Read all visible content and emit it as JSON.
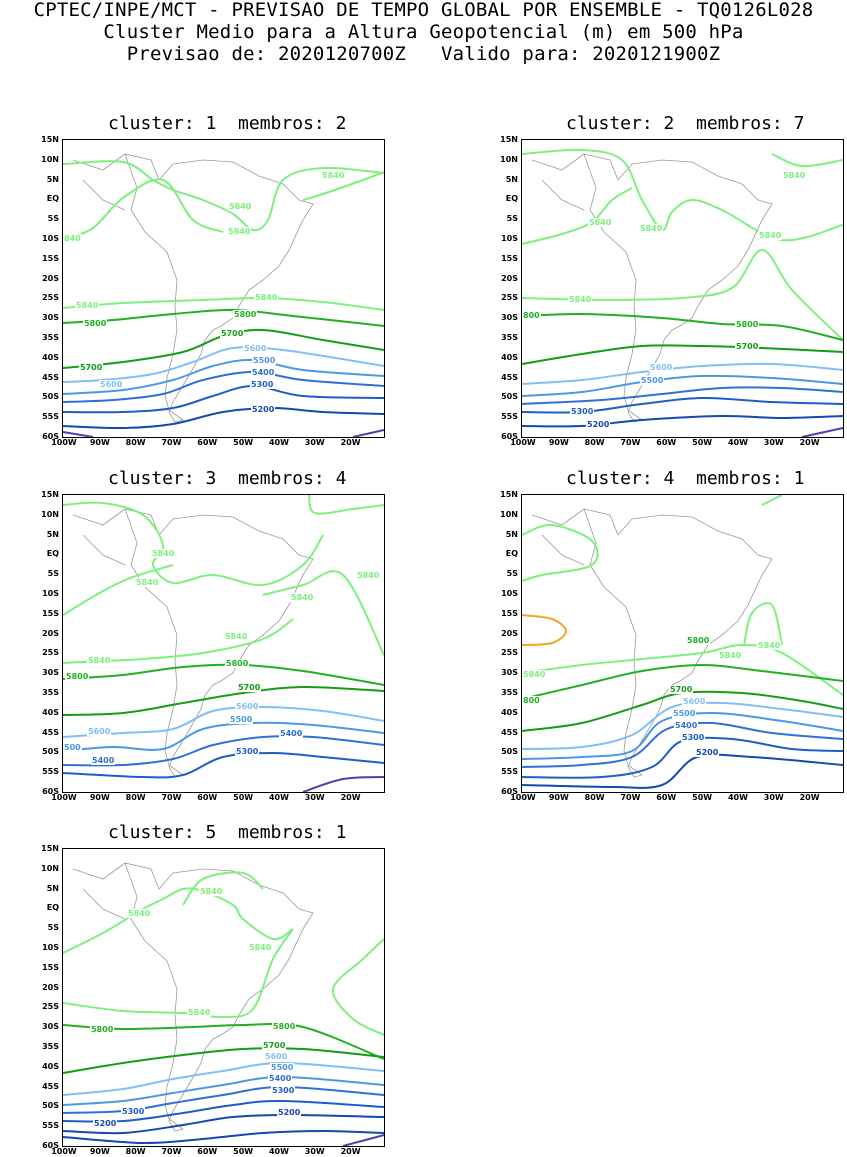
{
  "header": {
    "line1": "CPTEC/INPE/MCT - PREVISAO DE TEMPO GLOBAL POR ENSEMBLE - TQ0126L028",
    "line2": "Cluster Medio para a Altura Geopotencial (m) em 500 hPa",
    "line3": "Previsao de: 2020120700Z   Valido para: 2020121900Z"
  },
  "axes": {
    "lat_ticks": [
      "15N",
      "10N",
      "5N",
      "EQ",
      "5S",
      "10S",
      "15S",
      "20S",
      "25S",
      "30S",
      "35S",
      "40S",
      "45S",
      "50S",
      "55S",
      "60S"
    ],
    "lon_ticks": [
      "100W",
      "90W",
      "80W",
      "70W",
      "60W",
      "50W",
      "40W",
      "30W",
      "20W"
    ]
  },
  "colors": {
    "5840": "#7df07d",
    "5800": "#22b022",
    "5700": "#149e14",
    "5600": "#82bff2",
    "5500": "#4a99e6",
    "5400": "#2f6fd6",
    "5300": "#1f5cc8",
    "5200": "#1548b0",
    "low": "#5040a8",
    "high": "#f5a623"
  },
  "panels": [
    {
      "title": "cluster: 1  membros: 2",
      "labels": [
        {
          "text": "5840",
          "c": "5840"
        },
        {
          "text": "5840",
          "c": "5840"
        },
        {
          "text": "5840",
          "c": "5840"
        },
        {
          "text": "840",
          "c": "5840"
        },
        {
          "text": "5840",
          "c": "5840"
        },
        {
          "text": "5840",
          "c": "5840"
        },
        {
          "text": "5800",
          "c": "5800"
        },
        {
          "text": "5800",
          "c": "5800"
        },
        {
          "text": "5700",
          "c": "5700"
        },
        {
          "text": "5700",
          "c": "5700"
        },
        {
          "text": "5600",
          "c": "5600"
        },
        {
          "text": "5600",
          "c": "5600"
        },
        {
          "text": "5500",
          "c": "5500"
        },
        {
          "text": "5400",
          "c": "5400"
        },
        {
          "text": "5300",
          "c": "5300"
        },
        {
          "text": "5200",
          "c": "5200"
        }
      ]
    },
    {
      "title": "cluster: 2  membros: 7",
      "labels": [
        {
          "text": "5840",
          "c": "5840"
        },
        {
          "text": "5840",
          "c": "5840"
        },
        {
          "text": "5840",
          "c": "5840"
        },
        {
          "text": "5840",
          "c": "5840"
        },
        {
          "text": "5840",
          "c": "5840"
        },
        {
          "text": "800",
          "c": "5800"
        },
        {
          "text": "5800",
          "c": "5800"
        },
        {
          "text": "5700",
          "c": "5700"
        },
        {
          "text": "5600",
          "c": "5600"
        },
        {
          "text": "5500",
          "c": "5500"
        },
        {
          "text": "5300",
          "c": "5300"
        },
        {
          "text": "5200",
          "c": "5200"
        }
      ]
    },
    {
      "title": "cluster: 3  membros: 4",
      "labels": [
        {
          "text": "5840",
          "c": "5840"
        },
        {
          "text": "5840",
          "c": "5840"
        },
        {
          "text": "5840",
          "c": "5840"
        },
        {
          "text": "5840",
          "c": "5840"
        },
        {
          "text": "5840",
          "c": "5840"
        },
        {
          "text": "5840",
          "c": "5840"
        },
        {
          "text": "5800",
          "c": "5800"
        },
        {
          "text": "5800",
          "c": "5800"
        },
        {
          "text": "5700",
          "c": "5700"
        },
        {
          "text": "5600",
          "c": "5600"
        },
        {
          "text": "5600",
          "c": "5600"
        },
        {
          "text": "5500",
          "c": "5500"
        },
        {
          "text": "500",
          "c": "5500"
        },
        {
          "text": "5400",
          "c": "5400"
        },
        {
          "text": "5400",
          "c": "5400"
        },
        {
          "text": "5300",
          "c": "5300"
        }
      ]
    },
    {
      "title": "cluster: 4  membros: 1",
      "labels": [
        {
          "text": "5840",
          "c": "5840"
        },
        {
          "text": "5840",
          "c": "5840"
        },
        {
          "text": "5840",
          "c": "5840"
        },
        {
          "text": "5800",
          "c": "5800"
        },
        {
          "text": "800",
          "c": "5800"
        },
        {
          "text": "5700",
          "c": "5700"
        },
        {
          "text": "5600",
          "c": "5600"
        },
        {
          "text": "5500",
          "c": "5500"
        },
        {
          "text": "5400",
          "c": "5400"
        },
        {
          "text": "5300",
          "c": "5300"
        },
        {
          "text": "5200",
          "c": "5200"
        }
      ]
    },
    {
      "title": "cluster: 5  membros: 1",
      "labels": [
        {
          "text": "5840",
          "c": "5840"
        },
        {
          "text": "5840",
          "c": "5840"
        },
        {
          "text": "5840",
          "c": "5840"
        },
        {
          "text": "5840",
          "c": "5840"
        },
        {
          "text": "5800",
          "c": "5800"
        },
        {
          "text": "5800",
          "c": "5800"
        },
        {
          "text": "5700",
          "c": "5700"
        },
        {
          "text": "5600",
          "c": "5600"
        },
        {
          "text": "5500",
          "c": "5500"
        },
        {
          "text": "5400",
          "c": "5400"
        },
        {
          "text": "5300",
          "c": "5300"
        },
        {
          "text": "5300",
          "c": "5300"
        },
        {
          "text": "5200",
          "c": "5200"
        },
        {
          "text": "5200",
          "c": "5200"
        }
      ]
    }
  ]
}
